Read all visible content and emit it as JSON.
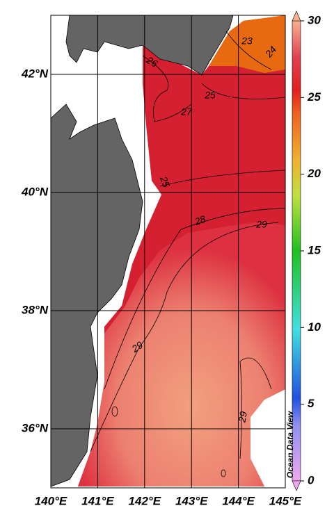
{
  "map": {
    "lon_range": [
      140,
      145
    ],
    "lat_range": [
      35,
      43
    ],
    "lon_ticks": [
      {
        "value": 140,
        "label": "140°E"
      },
      {
        "value": 141,
        "label": "141°E"
      },
      {
        "value": 142,
        "label": "142°E"
      },
      {
        "value": 143,
        "label": "143°E"
      },
      {
        "value": 144,
        "label": "144°E"
      },
      {
        "value": 145,
        "label": "145°E"
      }
    ],
    "lat_ticks": [
      {
        "value": 36,
        "label": "36°N"
      },
      {
        "value": 38,
        "label": "38°N"
      },
      {
        "value": 40,
        "label": "40°N"
      },
      {
        "value": 42,
        "label": "42°N"
      }
    ],
    "colorbar": {
      "range": [
        0,
        30
      ],
      "ticks": [
        0,
        5,
        10,
        15,
        20,
        25,
        30
      ]
    },
    "contour_labels": [
      "26",
      "27",
      "25",
      "25",
      "23",
      "24",
      "28",
      "29",
      "29",
      "29"
    ],
    "credit": "Ocean Data View"
  }
}
